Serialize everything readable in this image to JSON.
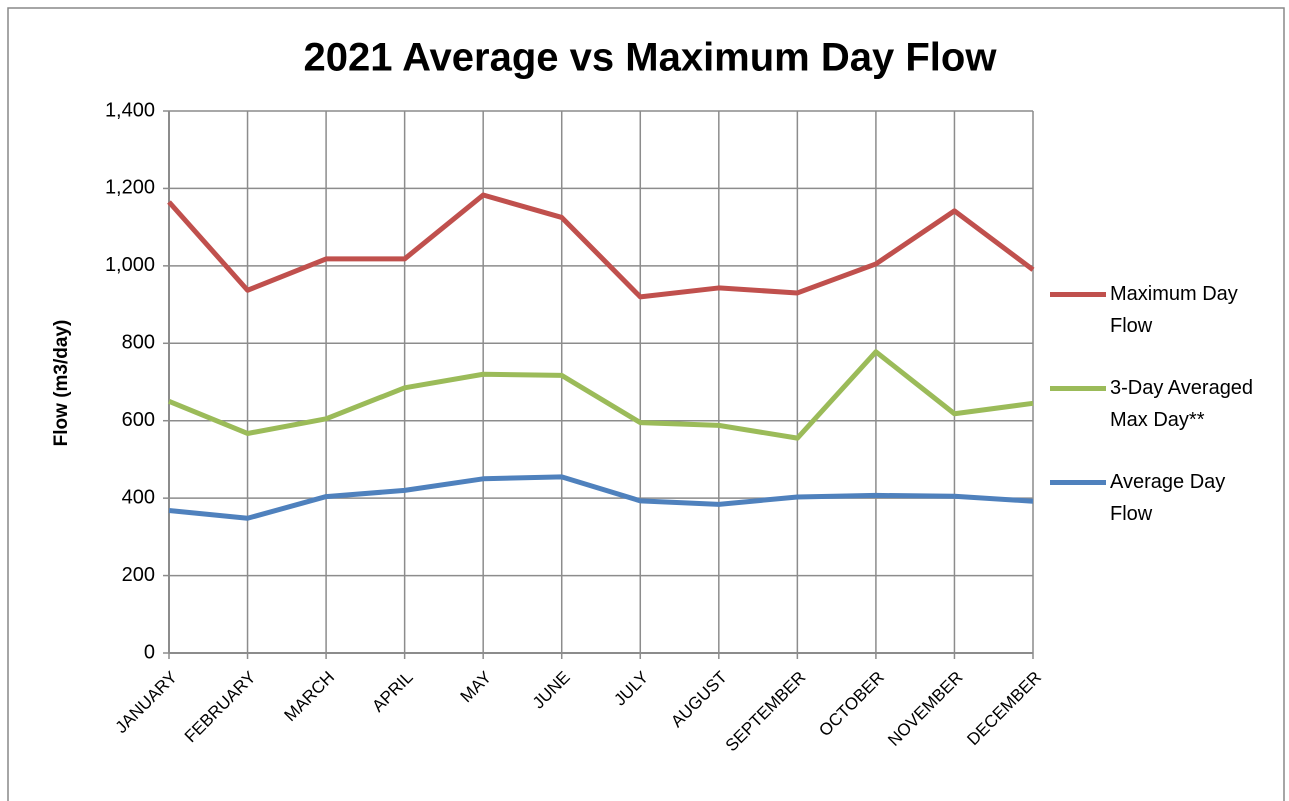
{
  "chart_data": {
    "type": "line",
    "title": "2021 Average vs Maximum Day Flow",
    "y_label": "Flow (m3/day)",
    "categories": [
      "JANUARY",
      "FEBRUARY",
      "MARCH",
      "APRIL",
      "MAY",
      "JUNE",
      "JULY",
      "AUGUST",
      "SEPTEMBER",
      "OCTOBER",
      "NOVEMBER",
      "DECEMBER"
    ],
    "series": [
      {
        "name": "Maximum Day Flow",
        "color": "#c0504d",
        "values": [
          1165,
          937,
          1018,
          1018,
          1183,
          1125,
          920,
          943,
          930,
          1005,
          1142,
          990
        ]
      },
      {
        "name": "3-Day Averaged Max Day**",
        "color": "#9bbb59",
        "values": [
          650,
          567,
          605,
          685,
          720,
          717,
          595,
          588,
          555,
          778,
          618,
          645
        ]
      },
      {
        "name": "Average Day Flow",
        "color": "#4f81bd",
        "values": [
          368,
          348,
          404,
          420,
          450,
          455,
          393,
          384,
          403,
          407,
          405,
          392
        ]
      }
    ],
    "ylim": [
      0,
      1400
    ],
    "yticks": [
      0,
      200,
      400,
      600,
      800,
      {
        "value": 1000,
        "label": "1,000"
      },
      {
        "value": 1200,
        "label": "1,200"
      },
      {
        "value": 1400,
        "label": "1,400"
      }
    ],
    "grid": true,
    "legend": "right"
  }
}
